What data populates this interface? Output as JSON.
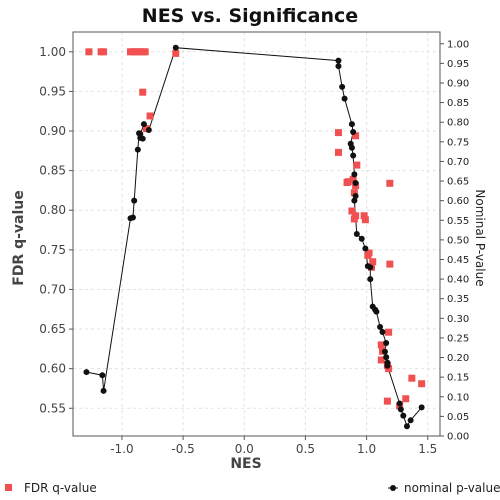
{
  "chart_data": {
    "type": "scatter",
    "title": "NES vs. Significance",
    "xlabel": "NES",
    "ylabel": "FDR q-value",
    "y2label": "Nominal P-value",
    "xlim": [
      -1.4,
      1.6
    ],
    "ylim": [
      0.515,
      1.025
    ],
    "y2lim": [
      0.0,
      1.03
    ],
    "x_ticks": [
      "-1.0",
      "-0.5",
      "0.0",
      "0.5",
      "1.0",
      "1.5"
    ],
    "y_ticks": [
      "0.55",
      "0.60",
      "0.65",
      "0.70",
      "0.75",
      "0.80",
      "0.85",
      "0.90",
      "0.95",
      "1.00"
    ],
    "y2_ticks": [
      "0.00",
      "0.05",
      "0.10",
      "0.15",
      "0.20",
      "0.25",
      "0.30",
      "0.35",
      "0.40",
      "0.45",
      "0.50",
      "0.55",
      "0.60",
      "0.65",
      "0.70",
      "0.75",
      "0.80",
      "0.85",
      "0.90",
      "0.95",
      "1.00"
    ],
    "grid": true,
    "series": [
      {
        "name": "FDR q-value",
        "marker": "square",
        "color": "#f05050",
        "axis": "left",
        "points": [
          [
            -1.27,
            1.0
          ],
          [
            -1.17,
            1.0
          ],
          [
            -1.15,
            1.0
          ],
          [
            -0.93,
            1.0
          ],
          [
            -0.91,
            1.0
          ],
          [
            -0.89,
            1.0
          ],
          [
            -0.87,
            1.0
          ],
          [
            -0.85,
            1.0
          ],
          [
            -0.83,
            1.0
          ],
          [
            -0.81,
            1.0
          ],
          [
            -0.83,
            0.949
          ],
          [
            -0.77,
            0.919
          ],
          [
            -0.8,
            0.903
          ],
          [
            -0.56,
            0.998
          ],
          [
            0.77,
            0.898
          ],
          [
            0.91,
            0.894
          ],
          [
            0.77,
            0.873
          ],
          [
            0.92,
            0.857
          ],
          [
            0.84,
            0.835
          ],
          [
            0.85,
            0.836
          ],
          [
            0.89,
            0.839
          ],
          [
            0.91,
            0.831
          ],
          [
            0.9,
            0.822
          ],
          [
            0.88,
            0.799
          ],
          [
            0.91,
            0.793
          ],
          [
            0.98,
            0.793
          ],
          [
            0.99,
            0.788
          ],
          [
            0.9,
            0.789
          ],
          [
            1.02,
            0.746
          ],
          [
            1.01,
            0.743
          ],
          [
            1.05,
            0.735
          ],
          [
            1.04,
            0.728
          ],
          [
            1.19,
            0.834
          ],
          [
            1.19,
            0.732
          ],
          [
            1.18,
            0.646
          ],
          [
            1.12,
            0.63
          ],
          [
            1.13,
            0.622
          ],
          [
            1.12,
            0.611
          ],
          [
            1.17,
            0.604
          ],
          [
            1.18,
            0.6
          ],
          [
            1.17,
            0.559
          ],
          [
            1.27,
            0.553
          ],
          [
            1.32,
            0.562
          ],
          [
            1.37,
            0.588
          ],
          [
            1.45,
            0.581
          ]
        ]
      },
      {
        "name": "nominal p-value",
        "marker": "circle",
        "color": "#111111",
        "axis": "right",
        "connected": true,
        "points": [
          [
            -1.29,
            0.163
          ],
          [
            -1.16,
            0.155
          ],
          [
            -1.15,
            0.115
          ],
          [
            -0.93,
            0.555
          ],
          [
            -0.91,
            0.557
          ],
          [
            -0.9,
            0.6
          ],
          [
            -0.87,
            0.73
          ],
          [
            -0.86,
            0.772
          ],
          [
            -0.85,
            0.76
          ],
          [
            -0.83,
            0.758
          ],
          [
            -0.85,
            0.77
          ],
          [
            -0.82,
            0.795
          ],
          [
            -0.78,
            0.78
          ],
          [
            -0.56,
            0.99
          ],
          [
            0.77,
            0.957
          ],
          [
            0.77,
            0.943
          ],
          [
            0.8,
            0.89
          ],
          [
            0.82,
            0.86
          ],
          [
            0.88,
            0.795
          ],
          [
            0.89,
            0.775
          ],
          [
            0.87,
            0.745
          ],
          [
            0.88,
            0.735
          ],
          [
            0.89,
            0.715
          ],
          [
            0.9,
            0.667
          ],
          [
            0.91,
            0.645
          ],
          [
            0.91,
            0.612
          ],
          [
            0.9,
            0.6
          ],
          [
            0.92,
            0.515
          ],
          [
            0.96,
            0.503
          ],
          [
            0.99,
            0.478
          ],
          [
            1.01,
            0.433
          ],
          [
            1.03,
            0.43
          ],
          [
            1.03,
            0.4
          ],
          [
            1.05,
            0.33
          ],
          [
            1.07,
            0.322
          ],
          [
            1.08,
            0.317
          ],
          [
            1.11,
            0.278
          ],
          [
            1.13,
            0.265
          ],
          [
            1.16,
            0.237
          ],
          [
            1.15,
            0.215
          ],
          [
            1.16,
            0.201
          ],
          [
            1.17,
            0.187
          ],
          [
            1.17,
            0.179
          ],
          [
            1.27,
            0.083
          ],
          [
            1.28,
            0.068
          ],
          [
            1.3,
            0.052
          ],
          [
            1.33,
            0.025
          ],
          [
            1.36,
            0.04
          ],
          [
            1.45,
            0.073
          ]
        ]
      }
    ]
  },
  "legend": {
    "left_label": "FDR q-value",
    "right_label": "nominal p-value"
  }
}
